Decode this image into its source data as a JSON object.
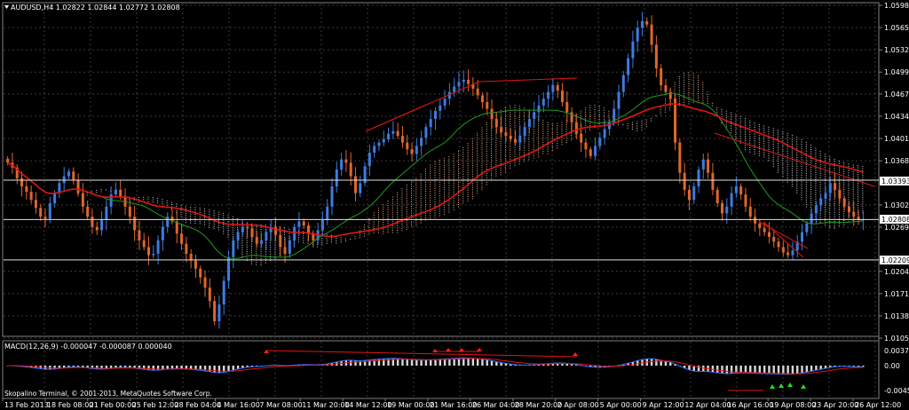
{
  "window": {
    "chart_header": "AUDUSD,H4  1.02822 1.02844 1.02772 1.02808",
    "copyright": "Skopalino Terminal, © 2001-2013, MetaQuotes Software Corp."
  },
  "colors": {
    "background": "#000000",
    "grid": "#3a3a3a",
    "bull_candle": "#3d7be0",
    "bear_candle": "#e0662c",
    "ma_slow": "#e01515",
    "ma_fast": "#1f9a1f",
    "cloud_bull": "#f0b48a",
    "cloud_bear": "#d8d8d8",
    "trend_line": "#e01515",
    "macd_hist": "#d8d8d8",
    "macd_signal": "#e01515",
    "macd_line": "#2f6fff",
    "arrow_up": "#22dd22",
    "arrow_down": "#ff2020"
  },
  "price_axis": {
    "labels": [
      "1.05985",
      "1.05655",
      "1.05325",
      "1.04995",
      "1.04670",
      "1.04340",
      "1.04010",
      "1.03680",
      "1.03025",
      "1.02695",
      "1.02040",
      "1.01710",
      "1.01380",
      "1.01050"
    ],
    "level_1": "1.03393",
    "current": "1.02808",
    "level_2": "1.02209"
  },
  "macd": {
    "header": "MACD(12,26,9) -0.000047 -0.000087 0.000040",
    "axis_labels": [
      "0.00375",
      "0.00",
      "-0.00456"
    ]
  },
  "time_axis": {
    "labels": [
      "13 Feb 2013",
      "18 Feb 08:00",
      "21 Feb 00:00",
      "25 Feb 12:00",
      "28 Feb 04:00",
      "4 Mar 16:00",
      "7 Mar 08:00",
      "11 Mar 20:00",
      "14 Mar 12:00",
      "19 Mar 00:00",
      "21 Mar 16:00",
      "26 Mar 04:00",
      "28 Mar 20:00",
      "2 Apr 08:00",
      "5 Apr 00:00",
      "9 Apr 12:00",
      "12 Apr 04:00",
      "16 Apr 16:00",
      "19 Apr 08:00",
      "23 Apr 20:00",
      "26 Apr 12:00"
    ]
  },
  "chart_data": {
    "type": "candlestick",
    "symbol": "AUDUSD",
    "timeframe": "H4",
    "ylim": [
      1.0105,
      1.0605
    ],
    "series_close": [
      1.0365,
      1.0358,
      1.0342,
      1.033,
      1.0322,
      1.031,
      1.0298,
      1.0285,
      1.0282,
      1.0305,
      1.032,
      1.0335,
      1.0345,
      1.0352,
      1.034,
      1.032,
      1.03,
      1.0285,
      1.027,
      1.0265,
      1.028,
      1.03,
      1.0318,
      1.0325,
      1.0315,
      1.03,
      1.0285,
      1.0265,
      1.025,
      1.024,
      1.0228,
      1.023,
      1.025,
      1.027,
      1.0285,
      1.0278,
      1.026,
      1.0245,
      1.023,
      1.022,
      1.0208,
      1.0195,
      1.018,
      1.016,
      1.013,
      1.0155,
      1.019,
      1.0225,
      1.025,
      1.0262,
      1.027,
      1.0268,
      1.0255,
      1.0245,
      1.025,
      1.0262,
      1.027,
      1.0258,
      1.024,
      1.023,
      1.025,
      1.027,
      1.0278,
      1.0272,
      1.026,
      1.025,
      1.0265,
      1.028,
      1.03,
      1.033,
      1.0355,
      1.037,
      1.0365,
      1.0345,
      1.032,
      1.0335,
      1.036,
      1.038,
      1.039,
      1.0395,
      1.04,
      1.0408,
      1.0412,
      1.0405,
      1.0395,
      1.0385,
      1.0378,
      1.039,
      1.0402,
      1.0418,
      1.043,
      1.0442,
      1.045,
      1.046,
      1.047,
      1.0478,
      1.0485,
      1.0488,
      1.0482,
      1.0475,
      1.0465,
      1.0455,
      1.0445,
      1.043,
      1.0418,
      1.041,
      1.0405,
      1.04,
      1.0395,
      1.0405,
      1.0418,
      1.043,
      1.044,
      1.045,
      1.046,
      1.047,
      1.048,
      1.0472,
      1.0455,
      1.044,
      1.0425,
      1.0408,
      1.0395,
      1.0385,
      1.0375,
      1.039,
      1.0402,
      1.0415,
      1.0425,
      1.0445,
      1.047,
      1.0495,
      1.052,
      1.0545,
      1.0565,
      1.0575,
      1.057,
      1.054,
      1.0505,
      1.048,
      1.047,
      1.046,
      1.0395,
      1.035,
      1.0325,
      1.031,
      1.033,
      1.0355,
      1.037,
      1.035,
      1.0325,
      1.0305,
      1.029,
      1.03,
      1.032,
      1.033,
      1.0318,
      1.03,
      1.0285,
      1.0275,
      1.0268,
      1.0262,
      1.0255,
      1.0248,
      1.024,
      1.0232,
      1.0228,
      1.0235,
      1.0248,
      1.0262,
      1.0275,
      1.029,
      1.0302,
      1.0312,
      1.032,
      1.0335,
      1.0325,
      1.0312,
      1.03,
      1.0292,
      1.0285,
      1.028,
      1.0281
    ]
  }
}
